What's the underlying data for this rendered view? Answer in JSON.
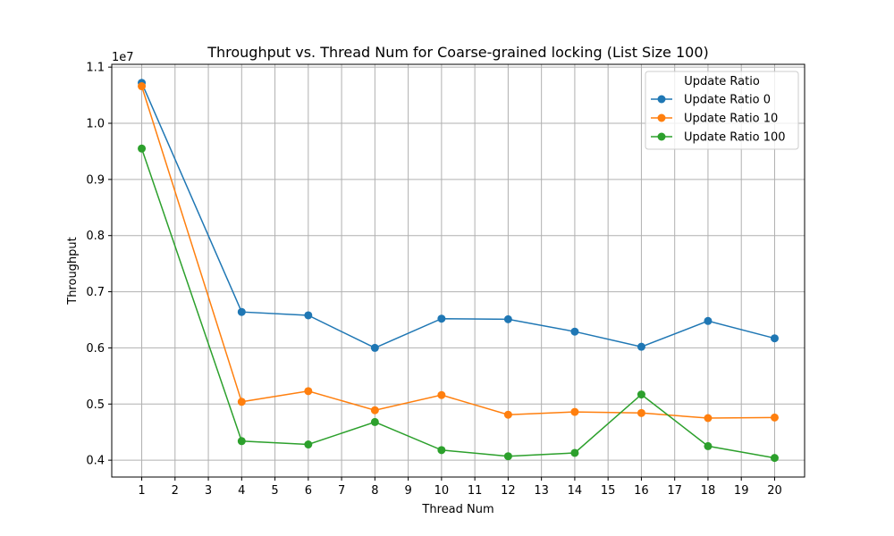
{
  "chart_data": {
    "type": "line",
    "title": "Throughput vs. Thread Num for Coarse-grained locking (List Size 100)",
    "xlabel": "Thread Num",
    "ylabel": "Throughput",
    "y_offset_label": "1e7",
    "xlim": [
      0.1,
      20.9
    ],
    "ylim": [
      3700000,
      11050000
    ],
    "x_ticks": [
      1,
      2,
      3,
      4,
      5,
      6,
      7,
      8,
      9,
      10,
      11,
      12,
      13,
      14,
      15,
      16,
      17,
      18,
      19,
      20
    ],
    "y_ticks": [
      4000000,
      5000000,
      6000000,
      7000000,
      8000000,
      9000000,
      10000000,
      11000000
    ],
    "y_tick_labels": [
      "0.4",
      "0.5",
      "0.6",
      "0.7",
      "0.8",
      "0.9",
      "1.0",
      "1.1"
    ],
    "grid": true,
    "legend": {
      "title": "Update Ratio",
      "placement": "top-right"
    },
    "x": [
      1,
      4,
      6,
      8,
      10,
      12,
      14,
      16,
      18,
      20
    ],
    "series": [
      {
        "name": "Update Ratio 0",
        "color": "#1f77b4",
        "values": [
          10720000,
          6640000,
          6580000,
          6000000,
          6520000,
          6510000,
          6290000,
          6020000,
          6480000,
          6170000
        ]
      },
      {
        "name": "Update Ratio 10",
        "color": "#ff7f0e",
        "values": [
          10660000,
          5040000,
          5230000,
          4890000,
          5160000,
          4810000,
          4860000,
          4840000,
          4750000,
          4760000
        ]
      },
      {
        "name": "Update Ratio 100",
        "color": "#2ca02c",
        "values": [
          9550000,
          4340000,
          4280000,
          4680000,
          4180000,
          4070000,
          4130000,
          5170000,
          4250000,
          4040000
        ]
      }
    ]
  }
}
